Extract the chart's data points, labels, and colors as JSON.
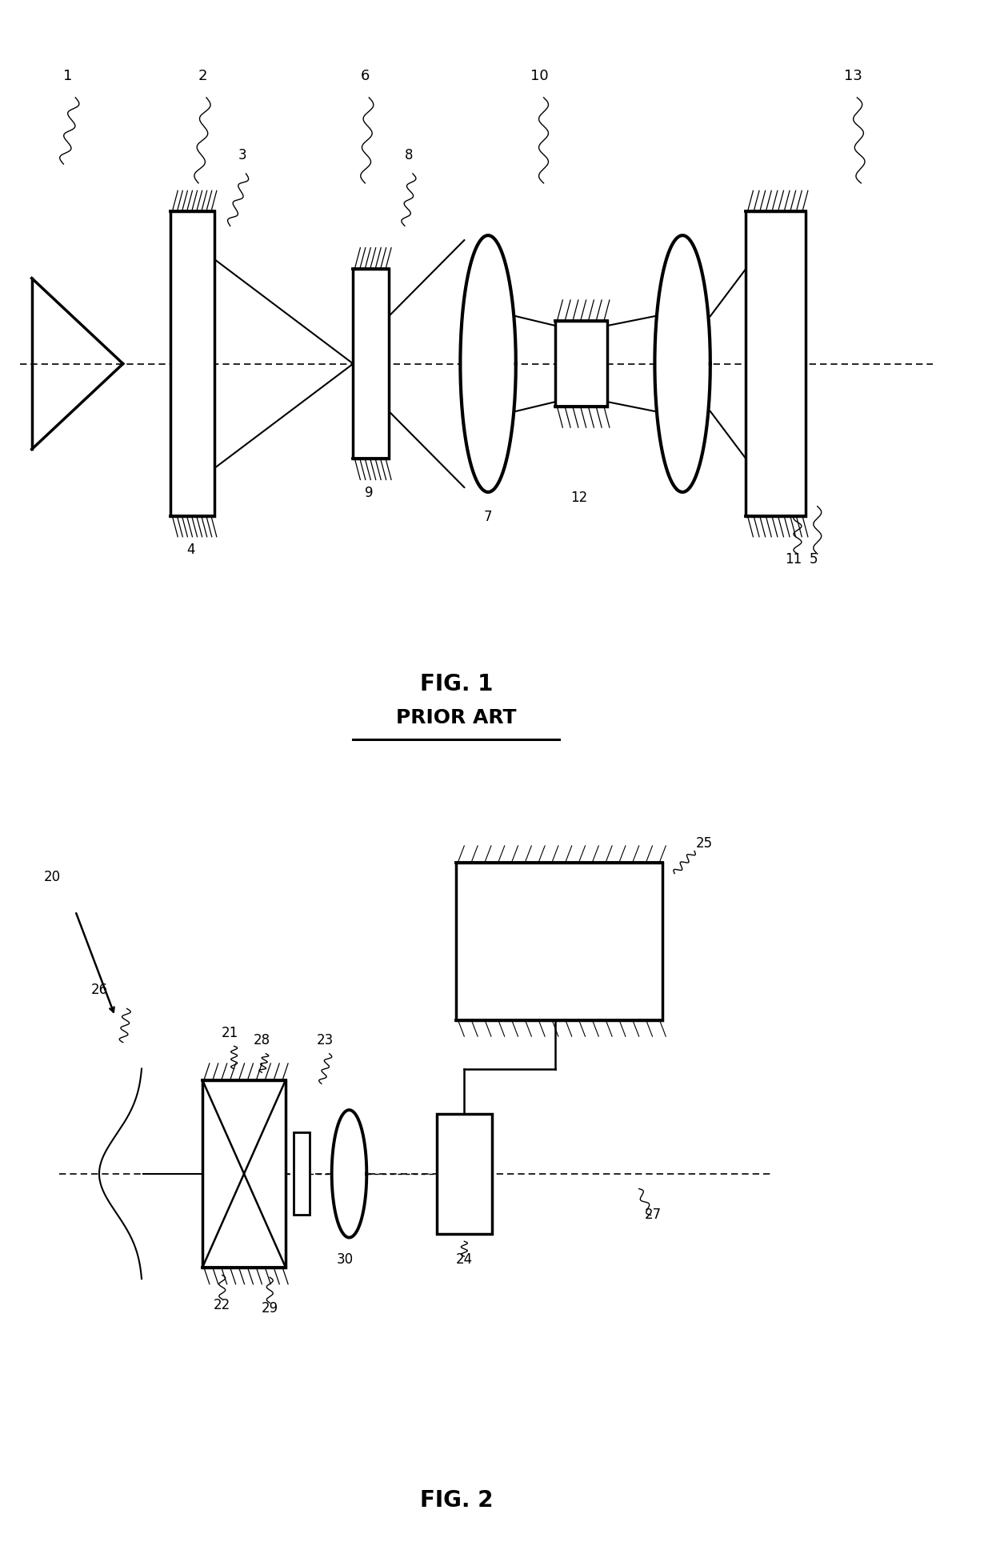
{
  "fig1_title": "FIG. 1",
  "fig1_subtitle": "PRIOR ART",
  "fig2_title": "FIG. 2",
  "bg_color": "#ffffff",
  "line_color": "#000000"
}
